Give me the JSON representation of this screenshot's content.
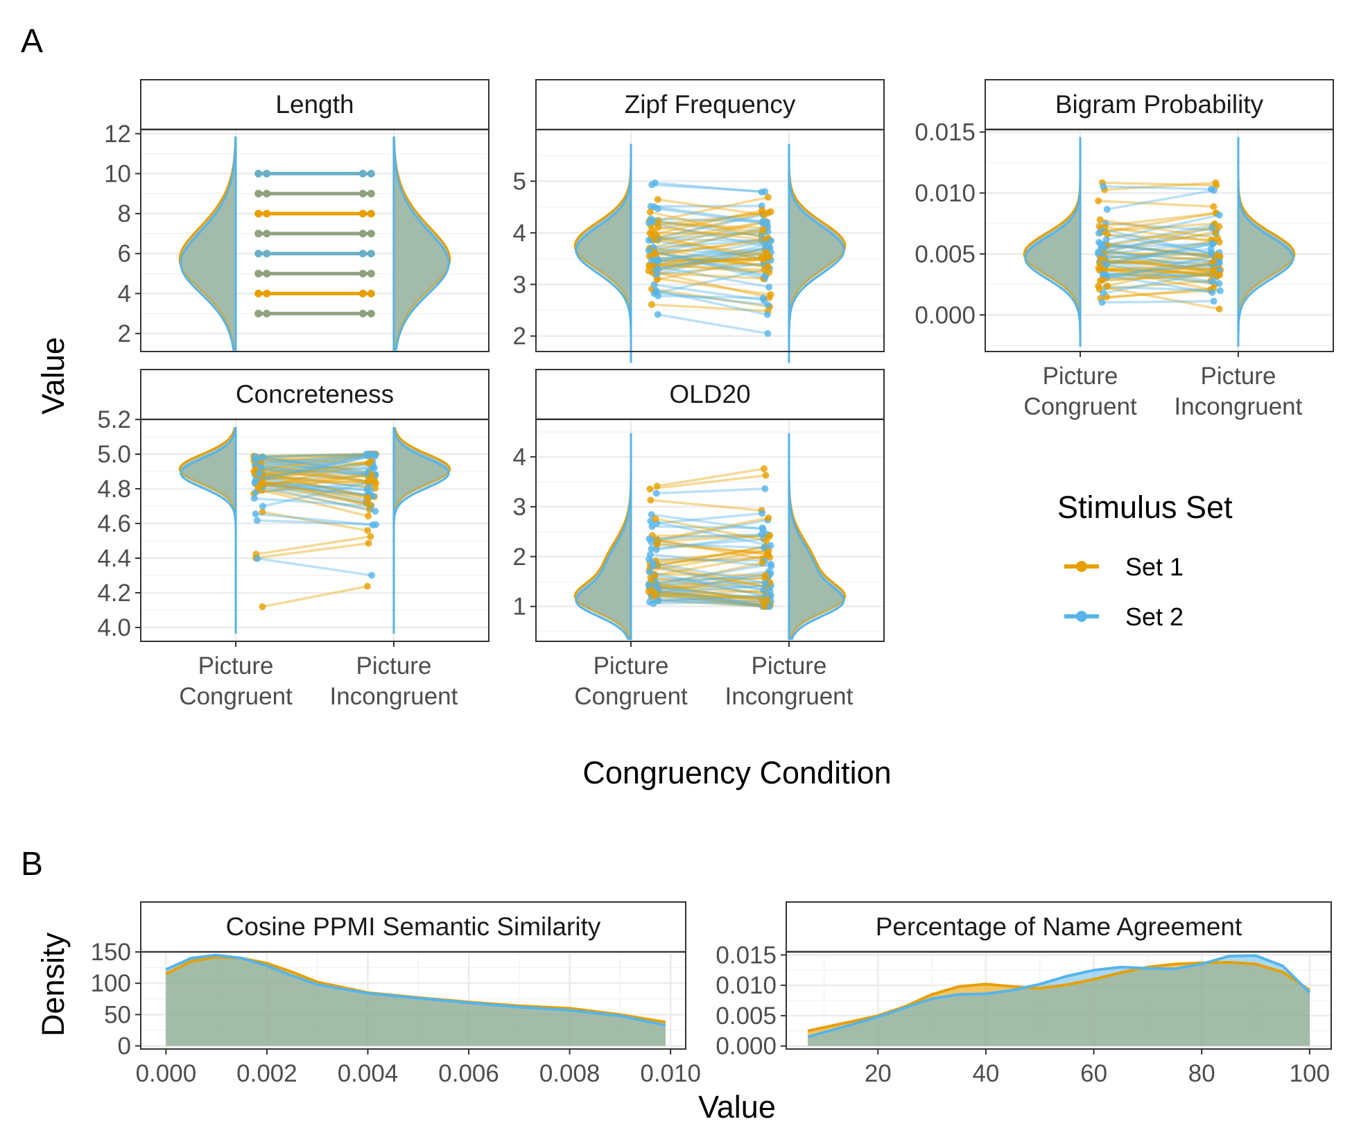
{
  "panel_labels": {
    "a": "A",
    "b": "B"
  },
  "colors": {
    "set1": "#E69F00",
    "set2": "#56B4E9",
    "overlap": "#9DB8A8",
    "grid_major": "#EBEBEB",
    "grid_minor": "#F3F3F3",
    "strip_fill": "#FFFFFF",
    "strip_border": "#333333",
    "panel_border": "#333333"
  },
  "legend": {
    "title": "Stimulus Set",
    "items": [
      {
        "label": "Set 1",
        "color": "#E69F00"
      },
      {
        "label": "Set 2",
        "color": "#56B4E9"
      }
    ]
  },
  "axes_a": {
    "xlabel": "Congruency Condition",
    "ylabel": "Value",
    "categories": [
      "Picture\nCongruent",
      "Picture\nIncongruent"
    ]
  },
  "axes_b": {
    "xlabel": "Value",
    "ylabel": "Density"
  },
  "chart_data": [
    {
      "type": "violin",
      "title": "Length",
      "categories": [
        "Picture Congruent",
        "Picture Incongruent"
      ],
      "ylim": [
        1.1,
        12.2
      ],
      "yticks": [
        "2",
        "4",
        "6",
        "8",
        "10",
        "12"
      ],
      "ytick_values": [
        2,
        4,
        6,
        8,
        10,
        12
      ],
      "violin": {
        "center": 5.6,
        "y_range": [
          1.2,
          11.8
        ],
        "peaks": [
          {
            "mu": 5.4,
            "sd": 1.2,
            "w": 0.3
          },
          {
            "mu": 5.8,
            "sd": 1.9,
            "w": 0.7
          }
        ]
      },
      "paired_values": [
        3,
        4,
        5,
        6,
        7,
        8,
        9,
        10
      ],
      "grid_style": "integer"
    },
    {
      "type": "violin",
      "title": "Zipf Frequency",
      "categories": [
        "Picture Congruent",
        "Picture Incongruent"
      ],
      "ylim": [
        1.7,
        6.0
      ],
      "yticks": [
        "2",
        "3",
        "4",
        "5"
      ],
      "ytick_values": [
        2,
        3,
        4,
        5
      ],
      "violin": {
        "center": 3.7,
        "y_range": [
          1.5,
          5.7
        ],
        "peaks": [
          {
            "mu": 3.7,
            "sd": 0.45,
            "w": 1.0
          }
        ]
      },
      "paired_range": [
        2.05,
        5.1
      ]
    },
    {
      "type": "violin",
      "title": "Bigram Probability",
      "categories": [
        "Picture Congruent",
        "Picture Incongruent"
      ],
      "ylim": [
        -0.003,
        0.0152
      ],
      "yticks": [
        "0.000",
        "0.005",
        "0.010",
        "0.015"
      ],
      "ytick_values": [
        0,
        0.005,
        0.01,
        0.015
      ],
      "violin": {
        "center": 0.005,
        "y_range": [
          -0.0025,
          0.0145
        ],
        "peaks": [
          {
            "mu": 0.0048,
            "sd": 0.0017,
            "w": 1.0
          }
        ]
      },
      "paired_range": [
        0.0002,
        0.012
      ]
    },
    {
      "type": "violin",
      "title": "Concreteness",
      "categories": [
        "Picture Congruent",
        "Picture Incongruent"
      ],
      "ylim": [
        3.92,
        5.2
      ],
      "yticks": [
        "4.0",
        "4.2",
        "4.4",
        "4.6",
        "4.8",
        "5.0",
        "5.2"
      ],
      "ytick_values": [
        4.0,
        4.2,
        4.4,
        4.6,
        4.8,
        5.0,
        5.2
      ],
      "violin": {
        "center": 4.9,
        "y_range": [
          3.97,
          5.15
        ],
        "peaks": [
          {
            "mu": 4.9,
            "sd": 0.085,
            "w": 1.0
          }
        ]
      },
      "paired_range": [
        4.11,
        5.0
      ]
    },
    {
      "type": "violin",
      "title": "OLD20",
      "categories": [
        "Picture Congruent",
        "Picture Incongruent"
      ],
      "ylim": [
        0.3,
        4.75
      ],
      "yticks": [
        "1",
        "2",
        "3",
        "4"
      ],
      "ytick_values": [
        1,
        2,
        3,
        4
      ],
      "violin": {
        "center": 1.05,
        "y_range": [
          0.35,
          4.45
        ],
        "peaks": [
          {
            "mu": 1.1,
            "sd": 0.28,
            "w": 0.6
          },
          {
            "mu": 1.7,
            "sd": 0.55,
            "w": 0.4
          }
        ]
      },
      "paired_range": [
        1.0,
        3.8
      ]
    },
    {
      "type": "area",
      "title": "Cosine PPMI Semantic Similarity",
      "xlabel": "Value",
      "ylabel": "Density",
      "xlim": [
        -0.0005,
        0.0103
      ],
      "ylim": [
        -5,
        150
      ],
      "xticks": [
        "0.000",
        "0.002",
        "0.004",
        "0.006",
        "0.008",
        "0.010"
      ],
      "xtick_values": [
        0,
        0.002,
        0.004,
        0.006,
        0.008,
        0.01
      ],
      "yticks": [
        "0",
        "50",
        "100",
        "150"
      ],
      "ytick_values": [
        0,
        50,
        100,
        150
      ],
      "series": [
        {
          "name": "Set 1",
          "x": [
            0,
            0.0005,
            0.001,
            0.0015,
            0.002,
            0.0025,
            0.003,
            0.004,
            0.005,
            0.006,
            0.007,
            0.008,
            0.009,
            0.0099
          ],
          "y": [
            115,
            135,
            142,
            140,
            132,
            118,
            102,
            85,
            77,
            70,
            64,
            60,
            50,
            38
          ]
        },
        {
          "name": "Set 2",
          "x": [
            0,
            0.0005,
            0.001,
            0.0015,
            0.002,
            0.0025,
            0.003,
            0.004,
            0.005,
            0.006,
            0.007,
            0.008,
            0.009,
            0.0099
          ],
          "y": [
            122,
            140,
            145,
            140,
            128,
            112,
            98,
            84,
            76,
            69,
            62,
            57,
            48,
            33
          ]
        }
      ]
    },
    {
      "type": "area",
      "title": "Percentage of Name Agreement",
      "xlabel": "Value",
      "ylabel": "Density",
      "xlim": [
        3,
        104
      ],
      "ylim": [
        -0.0005,
        0.0155
      ],
      "xticks": [
        "20",
        "40",
        "60",
        "80",
        "100"
      ],
      "xtick_values": [
        20,
        40,
        60,
        80,
        100
      ],
      "yticks": [
        "0.000",
        "0.005",
        "0.010",
        "0.015"
      ],
      "ytick_values": [
        0,
        0.005,
        0.01,
        0.015
      ],
      "series": [
        {
          "name": "Set 1",
          "x": [
            7,
            15,
            20,
            25,
            30,
            35,
            40,
            45,
            50,
            55,
            60,
            65,
            70,
            75,
            80,
            85,
            90,
            95,
            100
          ],
          "y": [
            0.0025,
            0.004,
            0.005,
            0.0065,
            0.0085,
            0.0098,
            0.0102,
            0.0098,
            0.0095,
            0.0101,
            0.011,
            0.0121,
            0.013,
            0.0135,
            0.0137,
            0.0138,
            0.0135,
            0.0122,
            0.0092
          ]
        },
        {
          "name": "Set 2",
          "x": [
            7,
            15,
            20,
            25,
            30,
            35,
            40,
            45,
            50,
            55,
            60,
            65,
            70,
            75,
            80,
            85,
            90,
            95,
            100
          ],
          "y": [
            0.0015,
            0.0035,
            0.0048,
            0.0063,
            0.0078,
            0.0085,
            0.0086,
            0.0092,
            0.0102,
            0.0115,
            0.0125,
            0.013,
            0.0128,
            0.0127,
            0.0135,
            0.0148,
            0.0149,
            0.0132,
            0.0088
          ]
        }
      ]
    }
  ]
}
